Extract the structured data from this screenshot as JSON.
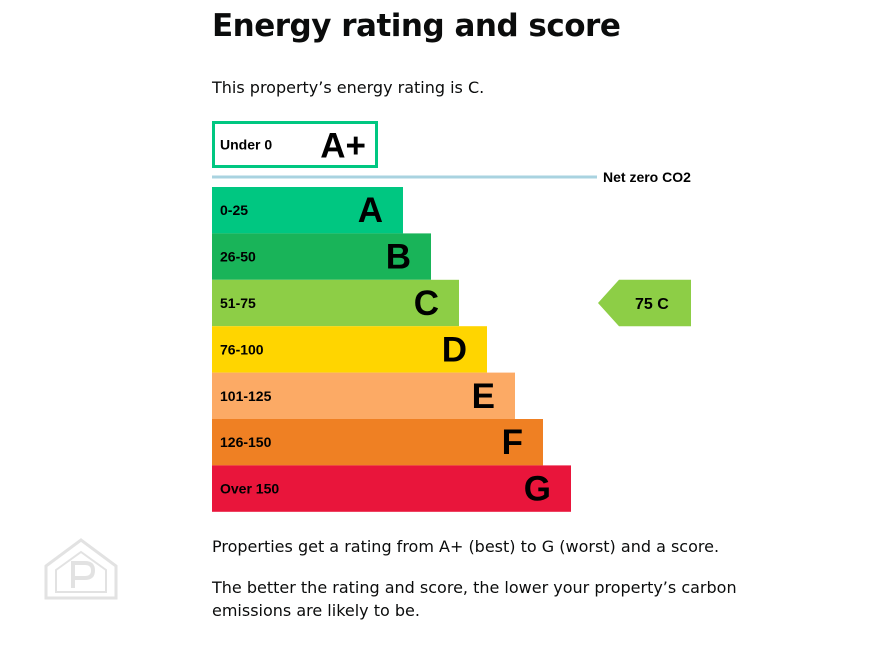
{
  "heading": "Energy rating and score",
  "intro": "This property’s energy rating is C.",
  "footnotes": [
    "Properties get a rating from A+ (best) to G (worst) and a score.",
    "The better the rating and score, the lower your property’s carbon emissions are likely to be."
  ],
  "chart_data": {
    "type": "bar",
    "categories": [
      "A+",
      "A",
      "B",
      "C",
      "D",
      "E",
      "F",
      "G"
    ],
    "bands": [
      {
        "letter": "A+",
        "range": "Under 0",
        "color": "#ffffff",
        "border": "#00c781"
      },
      {
        "letter": "A",
        "range": "0-25",
        "color": "#00c781"
      },
      {
        "letter": "B",
        "range": "26-50",
        "color": "#19b459"
      },
      {
        "letter": "C",
        "range": "51-75",
        "color": "#8dce46"
      },
      {
        "letter": "D",
        "range": "76-100",
        "color": "#ffd500"
      },
      {
        "letter": "E",
        "range": "101-125",
        "color": "#fcaa65"
      },
      {
        "letter": "F",
        "range": "126-150",
        "color": "#ef8023"
      },
      {
        "letter": "G",
        "range": "Over 150",
        "color": "#e9153b"
      }
    ],
    "net_zero_label": "Net zero CO2",
    "net_zero_color": "#a9d3e0",
    "current": {
      "score": 75,
      "letter": "C",
      "score_text": "75  C",
      "band": "C",
      "color": "#8dce46"
    }
  }
}
